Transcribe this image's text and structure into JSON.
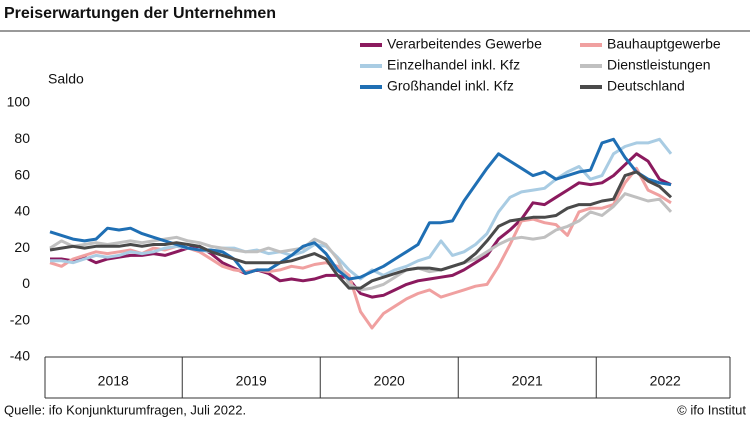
{
  "chart_data": {
    "type": "line",
    "title": "Preiserwartungen der Unternehmen",
    "ylabel": "Saldo",
    "source": "Quelle: ifo Konjunkturumfragen, Juli 2022.",
    "credit": "© ifo Institut",
    "categories": [
      null,
      null,
      null,
      null,
      null,
      null,
      "2018",
      null,
      null,
      null,
      null,
      null,
      null,
      null,
      null,
      null,
      null,
      null,
      "2019",
      null,
      null,
      null,
      null,
      null,
      null,
      null,
      null,
      null,
      null,
      null,
      "2020",
      null,
      null,
      null,
      null,
      null,
      null,
      null,
      null,
      null,
      null,
      null,
      "2021",
      null,
      null,
      null,
      null,
      null,
      null,
      null,
      null,
      null,
      null,
      null,
      "2022"
    ],
    "ylim": [
      -40,
      100
    ],
    "yticks": [
      -40,
      -20,
      0,
      20,
      40,
      60,
      80,
      100
    ],
    "grid": false,
    "legend": "top-right",
    "series": [
      {
        "name": "Verarbeitendes Gewerbe",
        "color": "#8b1a5e",
        "values": [
          14,
          14,
          13,
          15,
          12,
          14,
          15,
          16,
          16,
          17,
          16,
          18,
          20,
          21,
          17,
          12,
          9,
          6,
          8,
          6,
          2,
          3,
          2,
          3,
          5,
          5,
          3,
          -5,
          -7,
          -6,
          -3,
          0,
          2,
          3,
          4,
          5,
          8,
          12,
          16,
          25,
          30,
          36,
          45,
          44,
          48,
          52,
          56,
          55,
          56,
          60,
          66,
          72,
          68,
          58,
          55
        ]
      },
      {
        "name": "Bauhauptgewerbe",
        "color": "#f0a0a0",
        "values": [
          12,
          10,
          14,
          16,
          18,
          17,
          18,
          19,
          17,
          20,
          19,
          21,
          20,
          18,
          14,
          10,
          8,
          7,
          8,
          7,
          8,
          10,
          9,
          11,
          12,
          10,
          5,
          -15,
          -24,
          -16,
          -12,
          -8,
          -5,
          -3,
          -7,
          -5,
          -3,
          -1,
          0,
          10,
          22,
          35,
          36,
          34,
          33,
          27,
          40,
          42,
          42,
          44,
          56,
          64,
          52,
          49,
          45
        ]
      },
      {
        "name": "Einzelhandel inkl. Kfz",
        "color": "#a9cce3",
        "values": [
          13,
          13,
          12,
          14,
          16,
          15,
          16,
          18,
          17,
          18,
          20,
          21,
          20,
          19,
          18,
          20,
          20,
          18,
          19,
          17,
          18,
          16,
          18,
          22,
          21,
          15,
          8,
          3,
          8,
          5,
          8,
          10,
          13,
          15,
          24,
          16,
          18,
          22,
          28,
          40,
          48,
          51,
          52,
          53,
          58,
          62,
          65,
          58,
          60,
          72,
          76,
          78,
          78,
          80,
          72
        ]
      },
      {
        "name": "Dienstleistungen",
        "color": "#c0c0c0",
        "values": [
          20,
          24,
          21,
          22,
          23,
          22,
          23,
          24,
          23,
          24,
          25,
          26,
          24,
          23,
          21,
          20,
          19,
          18,
          18,
          20,
          18,
          19,
          20,
          25,
          22,
          14,
          0,
          -3,
          -2,
          0,
          4,
          8,
          9,
          7,
          8,
          10,
          12,
          14,
          18,
          22,
          25,
          26,
          25,
          26,
          30,
          32,
          35,
          40,
          38,
          43,
          50,
          48,
          46,
          47,
          40
        ]
      },
      {
        "name": "Großhandel inkl. Kfz",
        "color": "#1f6fb4",
        "values": [
          29,
          27,
          25,
          24,
          25,
          31,
          30,
          31,
          28,
          26,
          24,
          22,
          20,
          19,
          19,
          18,
          14,
          6,
          8,
          8,
          12,
          16,
          21,
          23,
          17,
          8,
          3,
          4,
          7,
          10,
          14,
          18,
          22,
          34,
          34,
          35,
          46,
          55,
          64,
          72,
          68,
          64,
          60,
          62,
          58,
          60,
          62,
          63,
          78,
          80,
          70,
          62,
          58,
          56,
          55
        ]
      },
      {
        "name": "Deutschland",
        "color": "#4a4a4a",
        "values": [
          19,
          20,
          21,
          20,
          21,
          21,
          21,
          22,
          21,
          22,
          22,
          23,
          22,
          21,
          18,
          16,
          14,
          12,
          12,
          12,
          12,
          13,
          15,
          17,
          14,
          5,
          -2,
          -2,
          2,
          4,
          6,
          8,
          9,
          9,
          8,
          10,
          12,
          17,
          24,
          32,
          35,
          36,
          37,
          37,
          38,
          42,
          44,
          44,
          46,
          47,
          60,
          62,
          57,
          54,
          48
        ]
      }
    ]
  }
}
